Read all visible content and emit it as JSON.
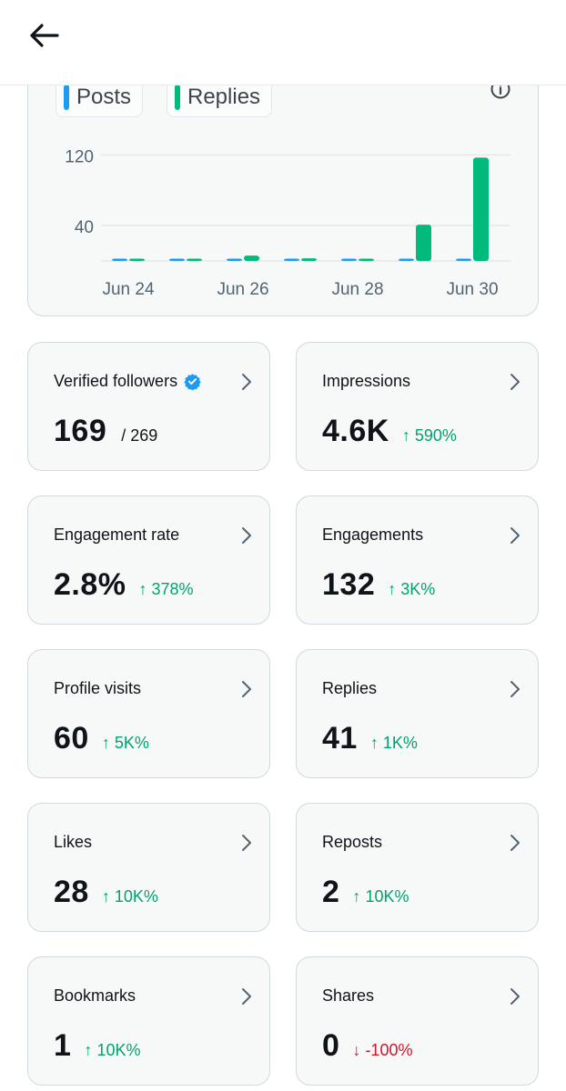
{
  "header": {
    "back_icon": "arrow-left-icon"
  },
  "chart_data": {
    "type": "bar",
    "categories": [
      "Jun 24",
      "Jun 25",
      "Jun 26",
      "Jun 27",
      "Jun 28",
      "Jun 29",
      "Jun 30"
    ],
    "x_tick_labels": [
      "Jun 24",
      "Jun 26",
      "Jun 28",
      "Jun 30"
    ],
    "y_tick_labels": [
      "120",
      "40"
    ],
    "y_ticks": [
      120,
      40
    ],
    "ylim": [
      0,
      140
    ],
    "series": [
      {
        "name": "Posts",
        "color": "#1d9bf0",
        "values": [
          0,
          0,
          0,
          0,
          0,
          2,
          2
        ]
      },
      {
        "name": "Replies",
        "color": "#00ba7c",
        "values": [
          0,
          2,
          6,
          3,
          0,
          41,
          117
        ]
      }
    ],
    "grid": true,
    "legend": "top-left"
  },
  "stats": [
    {
      "label": "Verified followers",
      "value": "169",
      "sub": "/ 269",
      "change": "",
      "direction": "none",
      "verified": true
    },
    {
      "label": "Impressions",
      "value": "4.6K",
      "change": "590%",
      "direction": "up"
    },
    {
      "label": "Engagement rate",
      "value": "2.8%",
      "change": "378%",
      "direction": "up"
    },
    {
      "label": "Engagements",
      "value": "132",
      "change": "3K%",
      "direction": "up"
    },
    {
      "label": "Profile visits",
      "value": "60",
      "change": "5K%",
      "direction": "up"
    },
    {
      "label": "Replies",
      "value": "41",
      "change": "1K%",
      "direction": "up"
    },
    {
      "label": "Likes",
      "value": "28",
      "change": "10K%",
      "direction": "up"
    },
    {
      "label": "Reposts",
      "value": "2",
      "change": "10K%",
      "direction": "up"
    },
    {
      "label": "Bookmarks",
      "value": "1",
      "change": "10K%",
      "direction": "up"
    },
    {
      "label": "Shares",
      "value": "0",
      "change": "-100%",
      "direction": "down"
    }
  ],
  "colors": {
    "up": "#00a36c",
    "down": "#d4132b",
    "posts": "#1d9bf0",
    "replies": "#00ba7c"
  }
}
